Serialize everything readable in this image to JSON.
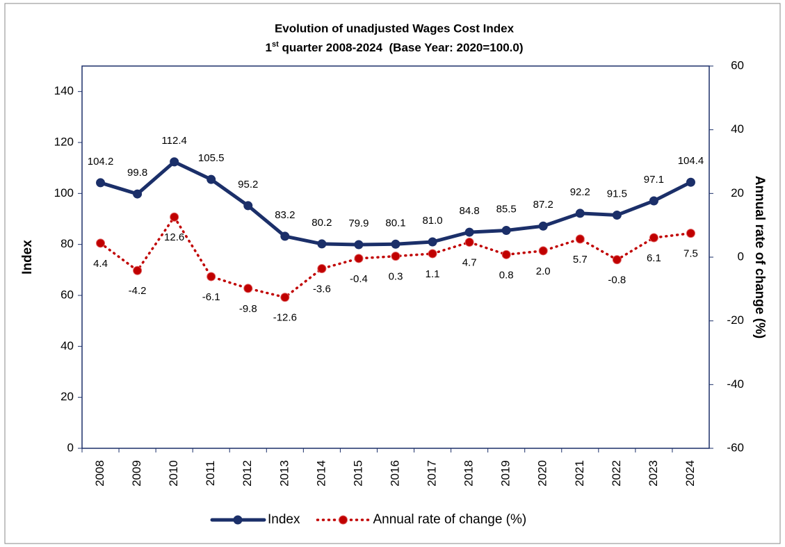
{
  "chart_data": {
    "type": "line",
    "title": "Evolution of unadjusted Wages Cost Index",
    "subtitle": [
      "1",
      "st",
      " quarter 2008-2024  (Base Year: 2020=100.0)"
    ],
    "y_label": "Index",
    "y2_label": "Annual rate of change (%)",
    "categories": [
      "2008",
      "2009",
      "2010",
      "2011",
      "2012",
      "2013",
      "2014",
      "2015",
      "2016",
      "2017",
      "2018",
      "2019",
      "2020",
      "2021",
      "2022",
      "2023",
      "2024"
    ],
    "series": [
      {
        "name": "Index",
        "color": "#1b2f69",
        "style": "solid",
        "values": [
          104.2,
          99.8,
          112.4,
          105.5,
          95.2,
          83.2,
          80.2,
          79.9,
          80.1,
          81.0,
          84.8,
          85.5,
          87.2,
          92.2,
          91.5,
          97.1,
          104.4
        ],
        "value_labels": [
          "104.2",
          "99.8",
          "112.4",
          "105.5",
          "95.2",
          "83.2",
          "80.2",
          "79.9",
          "80.1",
          "81.0",
          "84.8",
          "85.5",
          "87.2",
          "92.2",
          "91.5",
          "97.1",
          "104.4"
        ]
      },
      {
        "name": "Annual rate of change (%)",
        "color": "#c00000",
        "style": "dotted",
        "axis": "y2",
        "values": [
          4.4,
          -4.2,
          12.6,
          -6.1,
          -9.8,
          -12.6,
          -3.6,
          -0.4,
          0.3,
          1.1,
          4.7,
          0.8,
          2.0,
          5.7,
          -0.8,
          6.1,
          7.5
        ],
        "value_labels": [
          "4.4",
          "-4.2",
          "12.6",
          "-6.1",
          "-9.8",
          "-12.6",
          "-3.6",
          "-0.4",
          "0.3",
          "1.1",
          "4.7",
          "0.8",
          "2.0",
          "5.7",
          "-0.8",
          "6.1",
          "7.5"
        ]
      }
    ],
    "ylim": [
      0,
      150
    ],
    "yticks": [
      0,
      20,
      40,
      60,
      80,
      100,
      120,
      140
    ],
    "y2lim": [
      -60,
      60
    ],
    "y2ticks": [
      -60,
      -40,
      -20,
      0,
      20,
      40,
      60
    ],
    "grid": false,
    "legend": "bottom"
  }
}
